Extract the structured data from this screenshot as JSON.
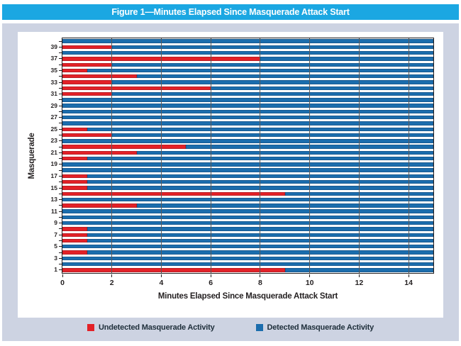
{
  "header": {
    "title": "Figure 1—Minutes Elapsed Since Masquerade Attack Start"
  },
  "chart_data": {
    "type": "bar",
    "orientation": "horizontal",
    "stacked": true,
    "title": "Figure 1—Minutes Elapsed Since Masquerade Attack Start",
    "xlabel": "Minutes Elapsed Since Masquerade Attack Start",
    "ylabel": "Masquerade",
    "xlim": [
      0,
      15
    ],
    "xticks": [
      0,
      2,
      4,
      6,
      8,
      10,
      12,
      14
    ],
    "yticks": [
      1,
      3,
      5,
      7,
      9,
      11,
      13,
      15,
      17,
      19,
      21,
      23,
      25,
      27,
      29,
      31,
      33,
      35,
      37,
      39
    ],
    "grid": "vertical",
    "legend_position": "bottom",
    "categories": [
      1,
      2,
      3,
      4,
      5,
      6,
      7,
      8,
      9,
      10,
      11,
      12,
      13,
      14,
      15,
      16,
      17,
      18,
      19,
      20,
      21,
      22,
      23,
      24,
      25,
      26,
      27,
      28,
      29,
      30,
      31,
      32,
      33,
      34,
      35,
      36,
      37,
      38,
      39,
      40
    ],
    "series": [
      {
        "name": "Undetected Masquerade Activity",
        "color": "#e32127",
        "values": [
          9,
          0,
          0,
          1,
          0,
          1,
          1,
          1,
          0,
          0,
          0,
          3,
          0,
          9,
          1,
          1,
          1,
          0,
          0,
          1,
          3,
          5,
          0,
          2,
          1,
          0,
          0,
          0,
          0,
          0,
          2,
          6,
          2,
          3,
          1,
          2,
          8,
          0,
          2,
          0
        ]
      },
      {
        "name": "Detected Masquerade Activity",
        "color": "#1b6dad",
        "values": [
          6,
          15,
          15,
          14,
          15,
          14,
          14,
          14,
          15,
          15,
          15,
          12,
          15,
          6,
          14,
          14,
          14,
          15,
          15,
          14,
          12,
          10,
          15,
          13,
          14,
          15,
          15,
          15,
          15,
          15,
          13,
          9,
          13,
          12,
          14,
          13,
          7,
          15,
          13,
          15
        ]
      }
    ]
  },
  "colors": {
    "header_bg": "#1ba7e2",
    "panel_bg": "#cdd3e2",
    "plot_border": "#231f20",
    "gridline": "#58595b",
    "axis_text": "#231f20",
    "legend_text": "#20303c"
  }
}
